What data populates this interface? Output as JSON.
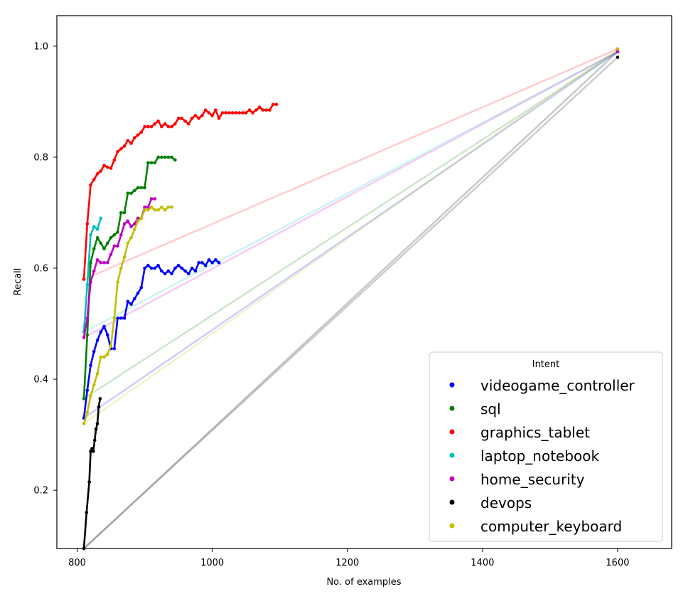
{
  "chart_data": {
    "type": "line",
    "title": "",
    "xlabel": "No. of examples",
    "ylabel": "Recall",
    "xlim": [
      770,
      1680
    ],
    "ylim": [
      0.095,
      1.055
    ],
    "xticks": [
      800,
      1000,
      1200,
      1400,
      1600
    ],
    "yticks": [
      0.2,
      0.4,
      0.6,
      0.8,
      1.0
    ],
    "xtick_labels": [
      "800",
      "1000",
      "1200",
      "1400",
      "1600"
    ],
    "ytick_labels": [
      "0.2",
      "0.4",
      "0.6",
      "0.8",
      "1.0"
    ],
    "grid": false,
    "legend": {
      "title": "Intent",
      "placement": "lower-right",
      "entries": [
        "videogame_controller",
        "sql",
        "graphics_tablet",
        "laptop_notebook",
        "home_security",
        "devops",
        "computer_keyboard"
      ]
    },
    "series": [
      {
        "name": "videogame_controller",
        "color": "#0000ff",
        "x": [
          810,
          815,
          820,
          825,
          830,
          835,
          840,
          845,
          850,
          855,
          860,
          865,
          870,
          875,
          880,
          885,
          890,
          895,
          900,
          905,
          910,
          915,
          920,
          925,
          930,
          935,
          940,
          945,
          950,
          955,
          960,
          965,
          970,
          975,
          980,
          985,
          990,
          995,
          1000,
          1005,
          1010
        ],
        "y": [
          0.33,
          0.38,
          0.425,
          0.45,
          0.47,
          0.485,
          0.495,
          0.48,
          0.455,
          0.455,
          0.51,
          0.51,
          0.51,
          0.54,
          0.535,
          0.545,
          0.555,
          0.565,
          0.6,
          0.605,
          0.6,
          0.6,
          0.605,
          0.595,
          0.59,
          0.595,
          0.59,
          0.6,
          0.605,
          0.6,
          0.595,
          0.59,
          0.6,
          0.595,
          0.61,
          0.61,
          0.605,
          0.615,
          0.61,
          0.615,
          0.61
        ],
        "end": [
          1600,
          0.99
        ]
      },
      {
        "name": "sql",
        "color": "#008000",
        "x": [
          810,
          815,
          820,
          825,
          830,
          835,
          840,
          845,
          850,
          855,
          860,
          865,
          870,
          875,
          880,
          885,
          890,
          895,
          900,
          905,
          910,
          915,
          920,
          925,
          930,
          935,
          940,
          945
        ],
        "y": [
          0.365,
          0.48,
          0.61,
          0.635,
          0.655,
          0.645,
          0.635,
          0.645,
          0.655,
          0.66,
          0.665,
          0.7,
          0.7,
          0.735,
          0.735,
          0.74,
          0.745,
          0.745,
          0.745,
          0.79,
          0.79,
          0.79,
          0.8,
          0.8,
          0.8,
          0.8,
          0.8,
          0.795
        ],
        "end": [
          1600,
          0.99
        ]
      },
      {
        "name": "graphics_tablet",
        "color": "#ff0000",
        "x": [
          810,
          815,
          820,
          825,
          830,
          835,
          840,
          845,
          850,
          855,
          860,
          865,
          870,
          875,
          880,
          885,
          890,
          895,
          900,
          905,
          910,
          915,
          920,
          925,
          930,
          935,
          940,
          945,
          950,
          955,
          960,
          965,
          970,
          975,
          980,
          985,
          990,
          995,
          1000,
          1005,
          1010,
          1015,
          1020,
          1025,
          1030,
          1035,
          1040,
          1045,
          1050,
          1055,
          1060,
          1065,
          1070,
          1075,
          1080,
          1085,
          1090,
          1095
        ],
        "y": [
          0.58,
          0.68,
          0.75,
          0.76,
          0.77,
          0.775,
          0.785,
          0.782,
          0.78,
          0.795,
          0.81,
          0.815,
          0.82,
          0.83,
          0.825,
          0.835,
          0.84,
          0.845,
          0.855,
          0.855,
          0.855,
          0.86,
          0.865,
          0.855,
          0.86,
          0.855,
          0.855,
          0.86,
          0.87,
          0.87,
          0.865,
          0.86,
          0.87,
          0.875,
          0.87,
          0.875,
          0.885,
          0.88,
          0.875,
          0.885,
          0.87,
          0.88,
          0.88,
          0.88,
          0.88,
          0.88,
          0.88,
          0.88,
          0.88,
          0.885,
          0.88,
          0.885,
          0.89,
          0.885,
          0.885,
          0.885,
          0.895,
          0.895
        ],
        "end": [
          1600,
          0.995
        ]
      },
      {
        "name": "laptop_notebook",
        "color": "#00bfbf",
        "x": [
          810,
          815,
          820,
          825,
          830,
          835
        ],
        "y": [
          0.485,
          0.57,
          0.66,
          0.675,
          0.67,
          0.69
        ],
        "end": [
          1600,
          0.99
        ]
      },
      {
        "name": "home_security",
        "color": "#bf00bf",
        "x": [
          810,
          815,
          820,
          825,
          830,
          835,
          840,
          845,
          850,
          855,
          860,
          865,
          870,
          875,
          880,
          885,
          890,
          895,
          900,
          905,
          910,
          915
        ],
        "y": [
          0.475,
          0.51,
          0.575,
          0.595,
          0.615,
          0.61,
          0.61,
          0.61,
          0.625,
          0.64,
          0.64,
          0.66,
          0.68,
          0.685,
          0.675,
          0.68,
          0.69,
          0.69,
          0.71,
          0.71,
          0.725,
          0.725
        ],
        "end": [
          1600,
          0.99
        ]
      },
      {
        "name": "devops",
        "color": "#000000",
        "x": [
          810,
          814,
          818,
          820,
          822,
          824,
          826,
          828,
          830,
          832,
          834
        ],
        "y": [
          0.095,
          0.16,
          0.215,
          0.27,
          0.275,
          0.27,
          0.29,
          0.31,
          0.32,
          0.35,
          0.365
        ],
        "end": [
          1600,
          0.98
        ]
      },
      {
        "name": "computer_keyboard",
        "color": "#bfbf00",
        "x": [
          810,
          815,
          820,
          825,
          830,
          835,
          840,
          845,
          850,
          855,
          860,
          865,
          870,
          875,
          880,
          885,
          890,
          895,
          900,
          905,
          910,
          915,
          920,
          925,
          930,
          935,
          940
        ],
        "y": [
          0.32,
          0.34,
          0.37,
          0.39,
          0.41,
          0.44,
          0.44,
          0.445,
          0.46,
          0.51,
          0.575,
          0.6,
          0.62,
          0.645,
          0.655,
          0.67,
          0.685,
          0.69,
          0.705,
          0.705,
          0.71,
          0.705,
          0.705,
          0.71,
          0.705,
          0.71,
          0.71
        ],
        "end": [
          1600,
          0.995
        ]
      }
    ],
    "reference_line": {
      "color": "#c8c8c8",
      "x": [
        810,
        1600
      ],
      "y": [
        0.095,
        0.99
      ]
    }
  }
}
